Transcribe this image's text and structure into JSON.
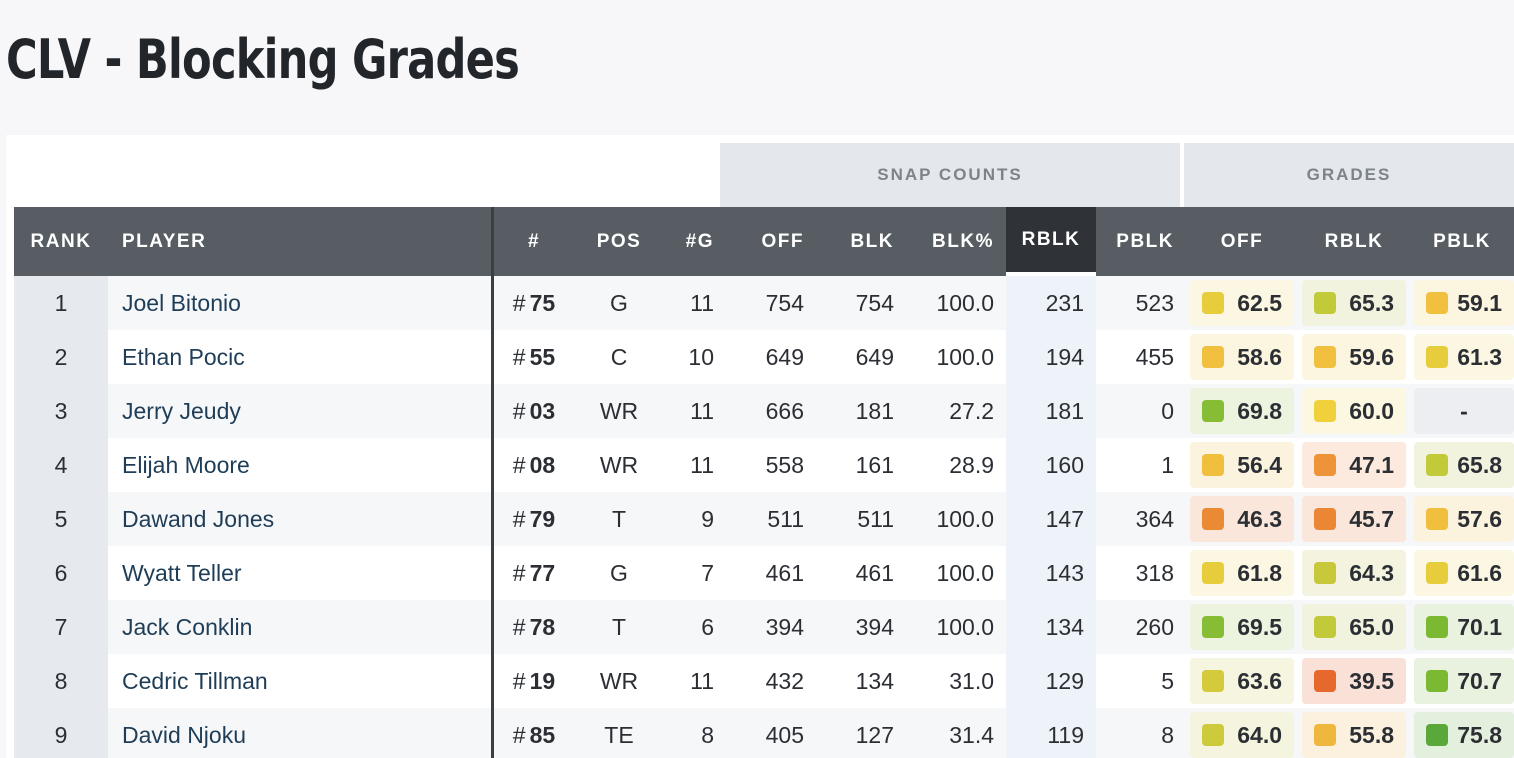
{
  "page": {
    "title": "CLV - Blocking Grades"
  },
  "groups": {
    "snap_counts": "SNAP COUNTS",
    "grades": "GRADES"
  },
  "columns": {
    "rank": "RANK",
    "player": "PLAYER",
    "jersey": "#",
    "pos": "POS",
    "games": "#G",
    "off": "OFF",
    "blk": "BLK",
    "blk_pct": "BLK%",
    "rblk": "RBLK",
    "pblk": "PBLK",
    "g_off": "OFF",
    "g_rblk": "RBLK",
    "g_pblk": "PBLK"
  },
  "jersey_prefix": "#",
  "empty_grade": "-",
  "grade_colors": {
    "green_dark": "#5aa83a",
    "green": "#86bd34",
    "yellow_green": "#c2ca3a",
    "yellow": "#e7cd3c",
    "yellow_orange": "#f0c03e",
    "orange": "#ef9a3c",
    "orange_deep": "#ea7d32",
    "red_orange": "#e6682c"
  },
  "rows": [
    {
      "rank": "1",
      "player": "Joel Bitonio",
      "jersey": "75",
      "pos": "G",
      "games": "11",
      "off": "754",
      "blk": "754",
      "blk_pct": "100.0",
      "rblk": "231",
      "pblk": "523",
      "g_off": {
        "value": "62.5",
        "color": "#e7cd3c",
        "bg": "#fbf7e2"
      },
      "g_rblk": {
        "value": "65.3",
        "color": "#c2ca3a",
        "bg": "#f1f3df"
      },
      "g_pblk": {
        "value": "59.1",
        "color": "#f0c03e",
        "bg": "#fcf5e0"
      }
    },
    {
      "rank": "2",
      "player": "Ethan Pocic",
      "jersey": "55",
      "pos": "C",
      "games": "10",
      "off": "649",
      "blk": "649",
      "blk_pct": "100.0",
      "rblk": "194",
      "pblk": "455",
      "g_off": {
        "value": "58.6",
        "color": "#f0c03e",
        "bg": "#fcf5e0"
      },
      "g_rblk": {
        "value": "59.6",
        "color": "#f0c03e",
        "bg": "#fcf5e0"
      },
      "g_pblk": {
        "value": "61.3",
        "color": "#e7cd3c",
        "bg": "#fbf7e2"
      }
    },
    {
      "rank": "3",
      "player": "Jerry Jeudy",
      "jersey": "03",
      "pos": "WR",
      "games": "11",
      "off": "666",
      "blk": "181",
      "blk_pct": "27.2",
      "rblk": "181",
      "pblk": "0",
      "g_off": {
        "value": "69.8",
        "color": "#86bd34",
        "bg": "#ecf3df"
      },
      "g_rblk": {
        "value": "60.0",
        "color": "#f0d13c",
        "bg": "#fcf7e0"
      },
      "g_pblk": {
        "value": "-",
        "color": "",
        "bg": "#eceef1"
      }
    },
    {
      "rank": "4",
      "player": "Elijah Moore",
      "jersey": "08",
      "pos": "WR",
      "games": "11",
      "off": "558",
      "blk": "161",
      "blk_pct": "28.9",
      "rblk": "160",
      "pblk": "1",
      "g_off": {
        "value": "56.4",
        "color": "#f0bf3e",
        "bg": "#fcf3df"
      },
      "g_rblk": {
        "value": "47.1",
        "color": "#ee9338",
        "bg": "#fbeadd"
      },
      "g_pblk": {
        "value": "65.8",
        "color": "#c2ca3a",
        "bg": "#f1f3df"
      }
    },
    {
      "rank": "5",
      "player": "Dawand Jones",
      "jersey": "79",
      "pos": "T",
      "games": "9",
      "off": "511",
      "blk": "511",
      "blk_pct": "100.0",
      "rblk": "147",
      "pblk": "364",
      "g_off": {
        "value": "46.3",
        "color": "#ea8a34",
        "bg": "#fae6da"
      },
      "g_rblk": {
        "value": "45.7",
        "color": "#ea8634",
        "bg": "#fae6da"
      },
      "g_pblk": {
        "value": "57.6",
        "color": "#f0bf3e",
        "bg": "#fcf3df"
      }
    },
    {
      "rank": "6",
      "player": "Wyatt Teller",
      "jersey": "77",
      "pos": "G",
      "games": "7",
      "off": "461",
      "blk": "461",
      "blk_pct": "100.0",
      "rblk": "143",
      "pblk": "318",
      "g_off": {
        "value": "61.8",
        "color": "#e7cd3c",
        "bg": "#fbf7e2"
      },
      "g_rblk": {
        "value": "64.3",
        "color": "#c8c93a",
        "bg": "#f3f3df"
      },
      "g_pblk": {
        "value": "61.6",
        "color": "#e7cd3c",
        "bg": "#fbf7e2"
      }
    },
    {
      "rank": "7",
      "player": "Jack Conklin",
      "jersey": "78",
      "pos": "T",
      "games": "6",
      "off": "394",
      "blk": "394",
      "blk_pct": "100.0",
      "rblk": "134",
      "pblk": "260",
      "g_off": {
        "value": "69.5",
        "color": "#86bd34",
        "bg": "#ecf3df"
      },
      "g_rblk": {
        "value": "65.0",
        "color": "#c2ca3a",
        "bg": "#f1f3df"
      },
      "g_pblk": {
        "value": "70.1",
        "color": "#7cb933",
        "bg": "#e9f2de"
      }
    },
    {
      "rank": "8",
      "player": "Cedric Tillman",
      "jersey": "19",
      "pos": "WR",
      "games": "11",
      "off": "432",
      "blk": "134",
      "blk_pct": "31.0",
      "rblk": "129",
      "pblk": "5",
      "g_off": {
        "value": "63.6",
        "color": "#d3cb3b",
        "bg": "#f6f5e0"
      },
      "g_rblk": {
        "value": "39.5",
        "color": "#e6682c",
        "bg": "#fae1d8"
      },
      "g_pblk": {
        "value": "70.7",
        "color": "#7cb933",
        "bg": "#e9f2de"
      }
    },
    {
      "rank": "9",
      "player": "David Njoku",
      "jersey": "85",
      "pos": "TE",
      "games": "8",
      "off": "405",
      "blk": "127",
      "blk_pct": "31.4",
      "rblk": "119",
      "pblk": "8",
      "g_off": {
        "value": "64.0",
        "color": "#cdca3b",
        "bg": "#f5f5df"
      },
      "g_rblk": {
        "value": "55.8",
        "color": "#f0b73e",
        "bg": "#fcf1df"
      },
      "g_pblk": {
        "value": "75.8",
        "color": "#5aa83a",
        "bg": "#e4f0de"
      }
    }
  ]
}
